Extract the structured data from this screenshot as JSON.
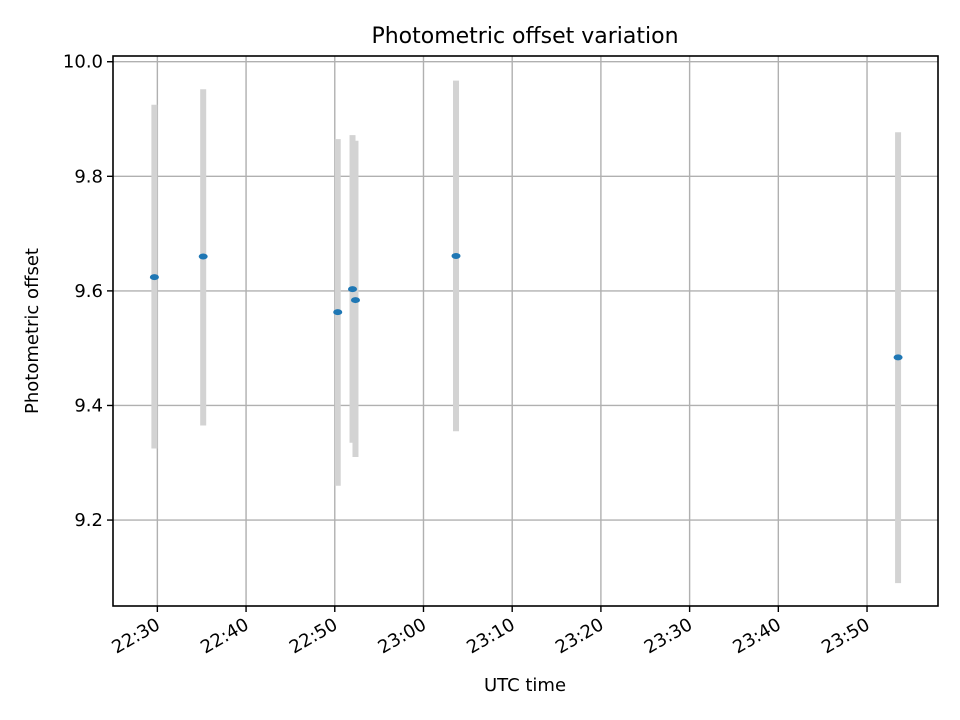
{
  "chart_data": {
    "type": "scatter",
    "title": "Photometric offset variation",
    "xlabel": "UTC time",
    "ylabel": "Photometric offset",
    "x_type": "time",
    "xlim": [
      "22:25",
      "23:58"
    ],
    "ylim": [
      9.05,
      10.01
    ],
    "x_ticks": [
      "22:30",
      "22:40",
      "22:50",
      "23:00",
      "23:10",
      "23:20",
      "23:30",
      "23:40",
      "23:50"
    ],
    "y_ticks": [
      9.2,
      9.4,
      9.6,
      9.8,
      10.0
    ],
    "y_tick_labels": [
      "9.2",
      "9.4",
      "9.6",
      "9.8",
      "10.0"
    ],
    "grid": true,
    "colors": {
      "point": "#1f77b4",
      "errorbar": "#d3d3d3",
      "grid": "#b0b0b0"
    },
    "points": [
      {
        "x": "22:29:40",
        "y": 9.624,
        "ylow": 9.325,
        "yhigh": 9.925
      },
      {
        "x": "22:35:10",
        "y": 9.66,
        "ylow": 9.365,
        "yhigh": 9.952
      },
      {
        "x": "22:50:20",
        "y": 9.563,
        "ylow": 9.26,
        "yhigh": 9.865
      },
      {
        "x": "22:52:00",
        "y": 9.603,
        "ylow": 9.335,
        "yhigh": 9.872
      },
      {
        "x": "22:52:20",
        "y": 9.584,
        "ylow": 9.31,
        "yhigh": 9.862
      },
      {
        "x": "23:03:40",
        "y": 9.661,
        "ylow": 9.355,
        "yhigh": 9.967
      },
      {
        "x": "23:53:30",
        "y": 9.484,
        "ylow": 9.09,
        "yhigh": 9.877
      }
    ]
  }
}
